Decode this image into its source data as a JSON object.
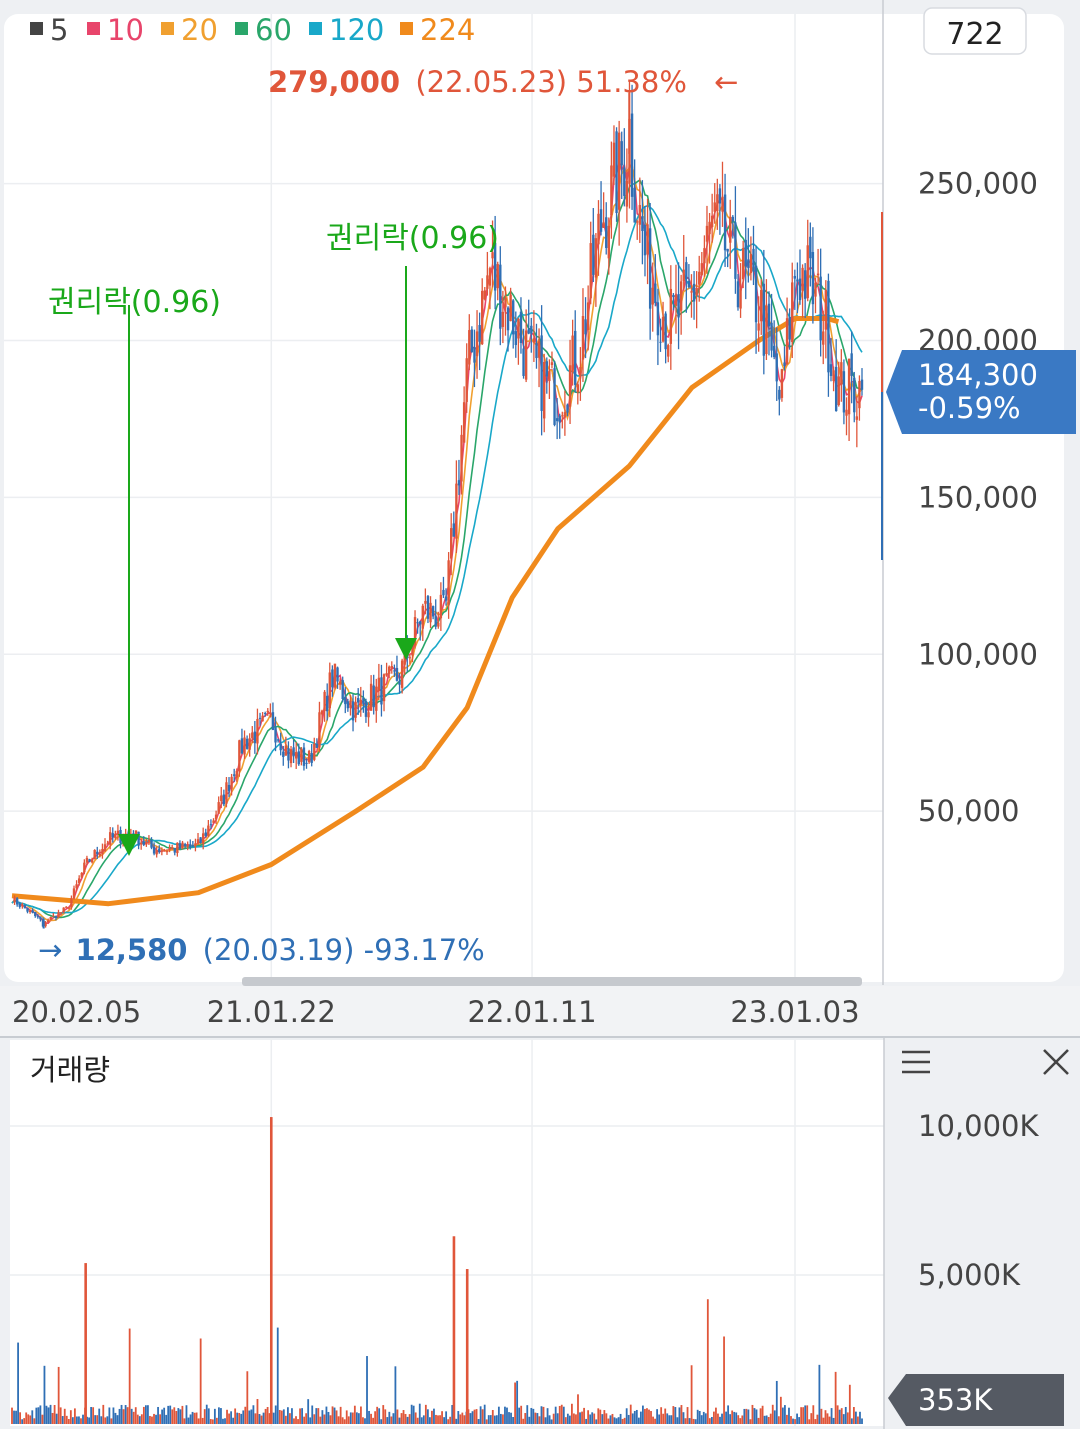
{
  "legend": [
    {
      "label": "5",
      "color": "#444444"
    },
    {
      "label": "10",
      "color": "#e8456b"
    },
    {
      "label": "20",
      "color": "#f0a030"
    },
    {
      "label": "60",
      "color": "#2aa66a"
    },
    {
      "label": "120",
      "color": "#19a8c9"
    },
    {
      "label": "224",
      "color": "#f08a1c"
    }
  ],
  "count_box": "722",
  "high_annotation": {
    "price": "279,000",
    "detail": "(22.05.23) 51.38%",
    "arrow": "←",
    "color": "#e0563a"
  },
  "low_annotation": {
    "arrow": "→",
    "price": "12,580",
    "detail": "(20.03.19) -93.17%",
    "color": "#2f6fb5"
  },
  "rights_annotations": [
    {
      "label": "권리락(0.96)",
      "date": "20.05.15"
    },
    {
      "label": "권리락(0.96)",
      "date": "21.07.15"
    }
  ],
  "current_price": {
    "price": "184,300",
    "change": "-0.59%"
  },
  "volume_panel": {
    "title": "거래량",
    "current": "353K",
    "menu_icon": "hamburger-icon",
    "close_icon": "close-icon"
  },
  "colors": {
    "candle_up": "#e0563a",
    "candle_down": "#2f6fb5",
    "badge_bg": "#3a79c4",
    "volume_badge_bg": "#555a63",
    "rights_arrow": "#1aa81a"
  },
  "chart_data": [
    {
      "type": "candlestick_with_moving_averages",
      "title": "",
      "x_type": "date",
      "x_ticks": [
        "20.02.05",
        "21.01.22",
        "22.01.11",
        "23.01.03"
      ],
      "y_ticks": [
        "50,000",
        "100,000",
        "150,000",
        "200,000",
        "250,000"
      ],
      "ylim": [
        0,
        310000
      ],
      "grid": true,
      "legend_position": "top-left",
      "moving_average_periods": [
        5,
        10,
        20,
        60,
        120,
        224
      ],
      "close_series": [
        [
          "20.02.05",
          22000
        ],
        [
          "20.03.19",
          14500
        ],
        [
          "20.04.20",
          19000
        ],
        [
          "20.05.15",
          33000
        ],
        [
          "20.06.15",
          41000
        ],
        [
          "20.07.15",
          43000
        ],
        [
          "20.08.14",
          38000
        ],
        [
          "20.09.15",
          38000
        ],
        [
          "20.10.15",
          39000
        ],
        [
          "20.11.16",
          53000
        ],
        [
          "20.12.15",
          72000
        ],
        [
          "21.01.22",
          79000
        ],
        [
          "21.02.15",
          68000
        ],
        [
          "21.03.15",
          66000
        ],
        [
          "21.04.15",
          93000
        ],
        [
          "21.05.17",
          82000
        ],
        [
          "21.06.15",
          88000
        ],
        [
          "21.07.15",
          93000
        ],
        [
          "21.08.16",
          114000
        ],
        [
          "21.09.15",
          112000
        ],
        [
          "21.10.15",
          190000
        ],
        [
          "21.11.15",
          223000
        ],
        [
          "21.12.15",
          208000
        ],
        [
          "22.01.11",
          192000
        ],
        [
          "22.02.15",
          182000
        ],
        [
          "22.03.15",
          195000
        ],
        [
          "22.04.15",
          238000
        ],
        [
          "22.05.23",
          262000
        ],
        [
          "22.06.15",
          225000
        ],
        [
          "22.07.15",
          205000
        ],
        [
          "22.08.16",
          214000
        ],
        [
          "22.09.15",
          238000
        ],
        [
          "22.10.17",
          222000
        ],
        [
          "22.11.15",
          212000
        ],
        [
          "22.12.15",
          180000
        ],
        [
          "23.01.03",
          222000
        ],
        [
          "23.01.20",
          220000
        ],
        [
          "23.02.15",
          205000
        ],
        [
          "23.03.03",
          184300
        ]
      ],
      "high": {
        "date": "22.05.23",
        "value": 279000
      },
      "low": {
        "date": "20.03.19",
        "value": 12580
      },
      "moving_average_224": [
        [
          "20.02.05",
          23000
        ],
        [
          "20.06.15",
          20500
        ],
        [
          "20.10.15",
          24000
        ],
        [
          "21.01.22",
          33000
        ],
        [
          "21.05.17",
          50000
        ],
        [
          "21.08.16",
          64000
        ],
        [
          "21.10.15",
          83000
        ],
        [
          "21.12.15",
          118000
        ],
        [
          "22.02.15",
          140000
        ],
        [
          "22.05.23",
          160000
        ],
        [
          "22.08.16",
          185000
        ],
        [
          "22.11.15",
          200000
        ],
        [
          "23.01.03",
          207000
        ],
        [
          "23.02.15",
          207000
        ],
        [
          "23.03.03",
          206000
        ]
      ]
    },
    {
      "type": "bar",
      "title": "거래량",
      "y_ticks": [
        "5,000K",
        "10,000K"
      ],
      "ylim": [
        0,
        11000
      ],
      "unit": "K",
      "grid": true,
      "notable_spikes": [
        [
          "20.05.15",
          5400
        ],
        [
          "21.01.22",
          10300
        ],
        [
          "21.09.27",
          6300
        ],
        [
          "21.10.15",
          5200
        ]
      ],
      "current": 353
    }
  ]
}
